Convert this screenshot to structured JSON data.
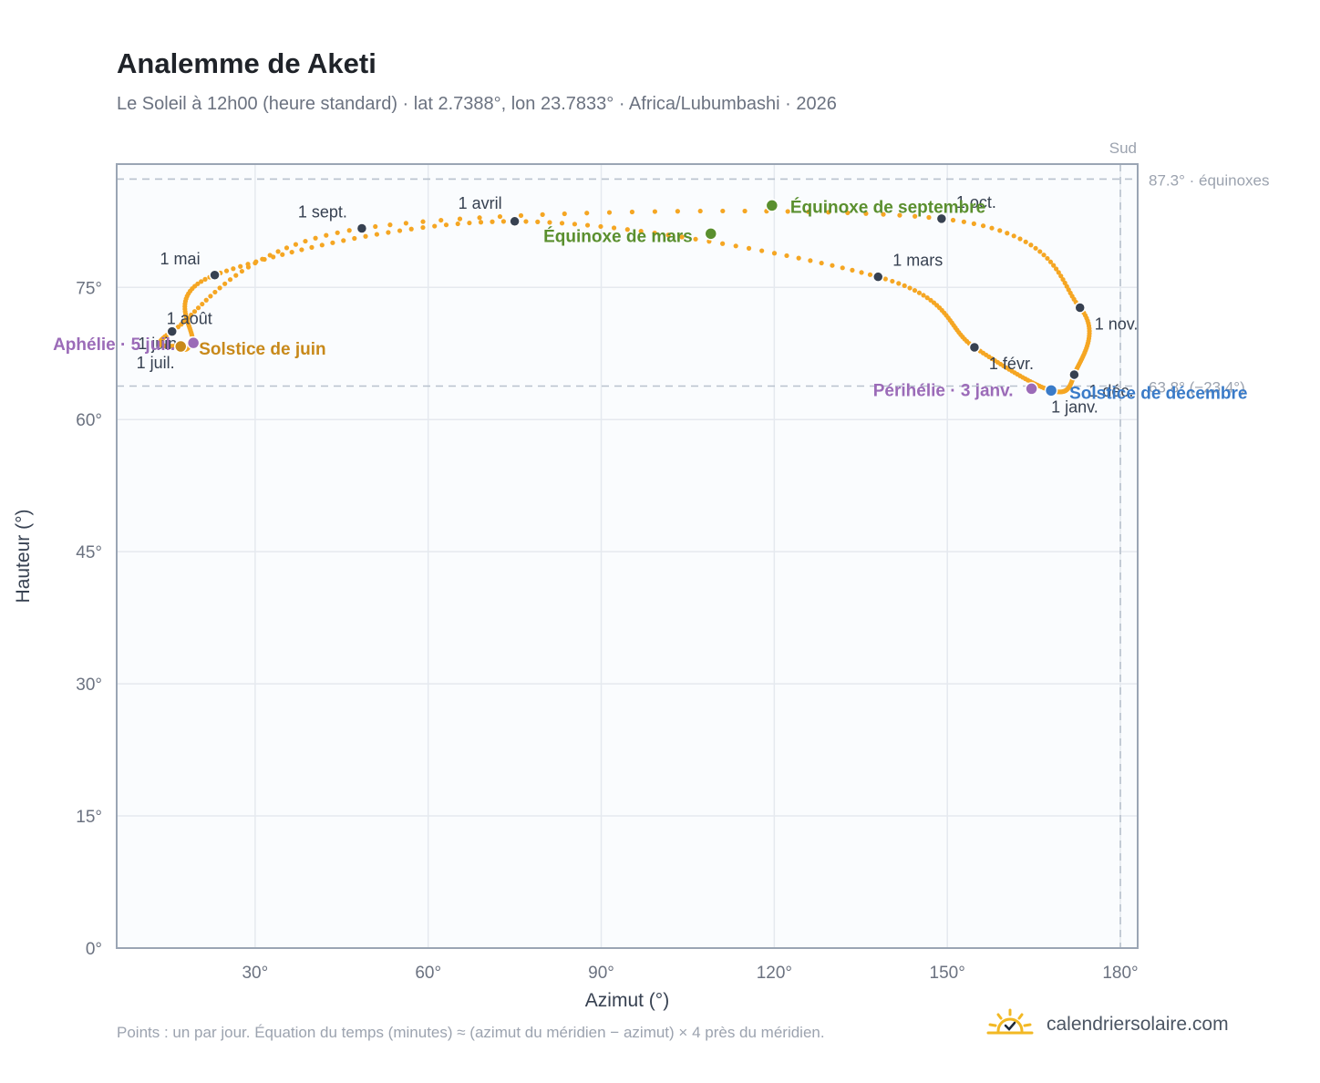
{
  "header": {
    "title": "Analemme de Aketi",
    "subtitle": "Le Soleil à 12h00 (heure standard) · lat 2.7388°, lon 23.7833° · Africa/Lubumbashi · 2026"
  },
  "footer": {
    "note": "Points : un par jour. Équation du temps (minutes) ≈ (azimut du méridien − azimut) × 4 près du méridien.",
    "brand": "calendriersolaire.com"
  },
  "colors": {
    "curve": "#f5a623",
    "month_marker": "#374151",
    "equinox": "#5a8f2e",
    "june_solstice": "#c8891a",
    "december_solstice": "#3a7bc8",
    "apsis": "#9b6bb8",
    "plot_bg": "#fafcfe",
    "grid": "#e5e9ef",
    "axis": "#9aa5b4"
  },
  "chart_data": {
    "type": "scatter",
    "xlabel": "Azimut (°)",
    "ylabel": "Hauteur (°)",
    "xlim": [
      6,
      183
    ],
    "ylim": [
      0,
      89
    ],
    "x_ticks": [
      30,
      60,
      90,
      120,
      150,
      180
    ],
    "x_tick_labels": [
      "30°",
      "60°",
      "90°",
      "120°",
      "150°",
      "180°"
    ],
    "y_ticks": [
      0,
      15,
      30,
      45,
      60,
      75
    ],
    "y_tick_labels": [
      "0°",
      "15°",
      "30°",
      "45°",
      "60°",
      "75°"
    ],
    "grid": true,
    "reference_lines": [
      {
        "axis": "y",
        "value": 87.3,
        "label": "87.3° · équinoxes"
      },
      {
        "axis": "y",
        "value": 63.8,
        "label": "63.8° (−23.4°)"
      },
      {
        "axis": "x",
        "value": 180,
        "label": "Sud"
      }
    ],
    "month_markers": [
      {
        "label": "1 janv.",
        "az": 168.0,
        "alt": 63.3
      },
      {
        "label": "1 févr.",
        "az": 154.7,
        "alt": 68.2
      },
      {
        "label": "1 mars",
        "az": 138.0,
        "alt": 76.2
      },
      {
        "label": "1 avril",
        "az": 75.0,
        "alt": 82.5
      },
      {
        "label": "1 mai",
        "az": 23.0,
        "alt": 76.4
      },
      {
        "label": "1 juin",
        "az": 19.0,
        "alt": 68.8
      },
      {
        "label": "1 juil.",
        "az": 17.0,
        "alt": 68.3
      },
      {
        "label": "1 août",
        "az": 15.6,
        "alt": 70.0
      },
      {
        "label": "1 sept.",
        "az": 48.5,
        "alt": 81.7
      },
      {
        "label": "1 oct.",
        "az": 149.0,
        "alt": 82.8
      },
      {
        "label": "1 nov.",
        "az": 173.0,
        "alt": 72.7
      },
      {
        "label": "1 déc.",
        "az": 172.0,
        "alt": 65.1
      }
    ],
    "events": [
      {
        "label": "Équinoxe de mars",
        "az": 109.0,
        "alt": 81.1,
        "kind": "equinox"
      },
      {
        "label": "Équinoxe de septembre",
        "az": 119.6,
        "alt": 84.3,
        "kind": "equinox"
      },
      {
        "label": "Solstice de juin",
        "az": 17.1,
        "alt": 68.3,
        "kind": "june_solstice"
      },
      {
        "label": "Solstice de décembre",
        "az": 168.0,
        "alt": 63.3,
        "kind": "december_solstice"
      },
      {
        "label": "Aphélie · 5 juil.",
        "az": 19.3,
        "alt": 68.7,
        "kind": "apsis"
      },
      {
        "label": "Périhélie · 3 janv.",
        "az": 164.6,
        "alt": 63.5,
        "kind": "apsis"
      }
    ]
  }
}
